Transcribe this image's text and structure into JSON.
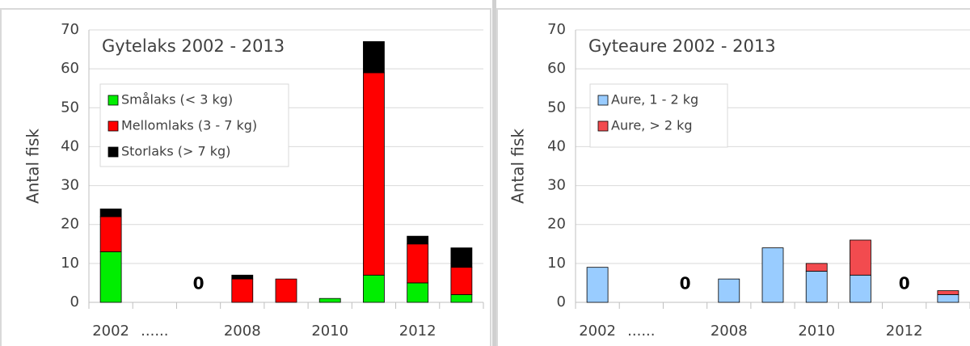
{
  "chart_data": [
    {
      "type": "bar",
      "stacked": true,
      "title": "Gytelaks 2002 - 2013",
      "y_label": "Antal fisk",
      "categories": [
        "2002",
        "......",
        null,
        "2008",
        null,
        "2010",
        null,
        "2012",
        null
      ],
      "series": [
        {
          "name": "Smålaks (< 3 kg)",
          "color": "#00ee00",
          "values": [
            13,
            null,
            0,
            0,
            0,
            1,
            7,
            5,
            2
          ],
          "value_labels": [
            null,
            null,
            "0",
            null,
            null,
            null,
            null,
            null,
            null
          ]
        },
        {
          "name": "Mellomlaks (3 - 7 kg)",
          "color": "#ff0000",
          "values": [
            9,
            null,
            0,
            6,
            6,
            0,
            52,
            10,
            7
          ]
        },
        {
          "name": "Storlaks (> 7 kg)",
          "color": "#000000",
          "values": [
            2,
            null,
            0,
            1,
            0,
            0,
            8,
            2,
            5
          ]
        }
      ],
      "ylim": [
        0,
        70
      ],
      "yticks": [
        0,
        10,
        20,
        30,
        40,
        50,
        60,
        70
      ],
      "grid": true
    },
    {
      "type": "bar",
      "stacked": true,
      "title": "Gyteaure 2002 - 2013",
      "y_label": "Antal fisk",
      "categories": [
        "2002",
        "......",
        null,
        "2008",
        null,
        "2010",
        null,
        "2012",
        null
      ],
      "series": [
        {
          "name": "Aure, 1 - 2 kg",
          "color": "#99ccff",
          "values": [
            9,
            null,
            0,
            6,
            14,
            8,
            7,
            0,
            2
          ],
          "value_labels": [
            null,
            null,
            "0",
            null,
            null,
            null,
            null,
            "0",
            null
          ]
        },
        {
          "name": "Aure, > 2 kg",
          "color": "#f24b4f",
          "values": [
            0,
            null,
            0,
            0,
            0,
            2,
            9,
            0,
            1
          ]
        }
      ],
      "ylim": [
        0,
        70
      ],
      "yticks": [
        0,
        10,
        20,
        30,
        40,
        50,
        60,
        70
      ],
      "grid": true
    }
  ]
}
